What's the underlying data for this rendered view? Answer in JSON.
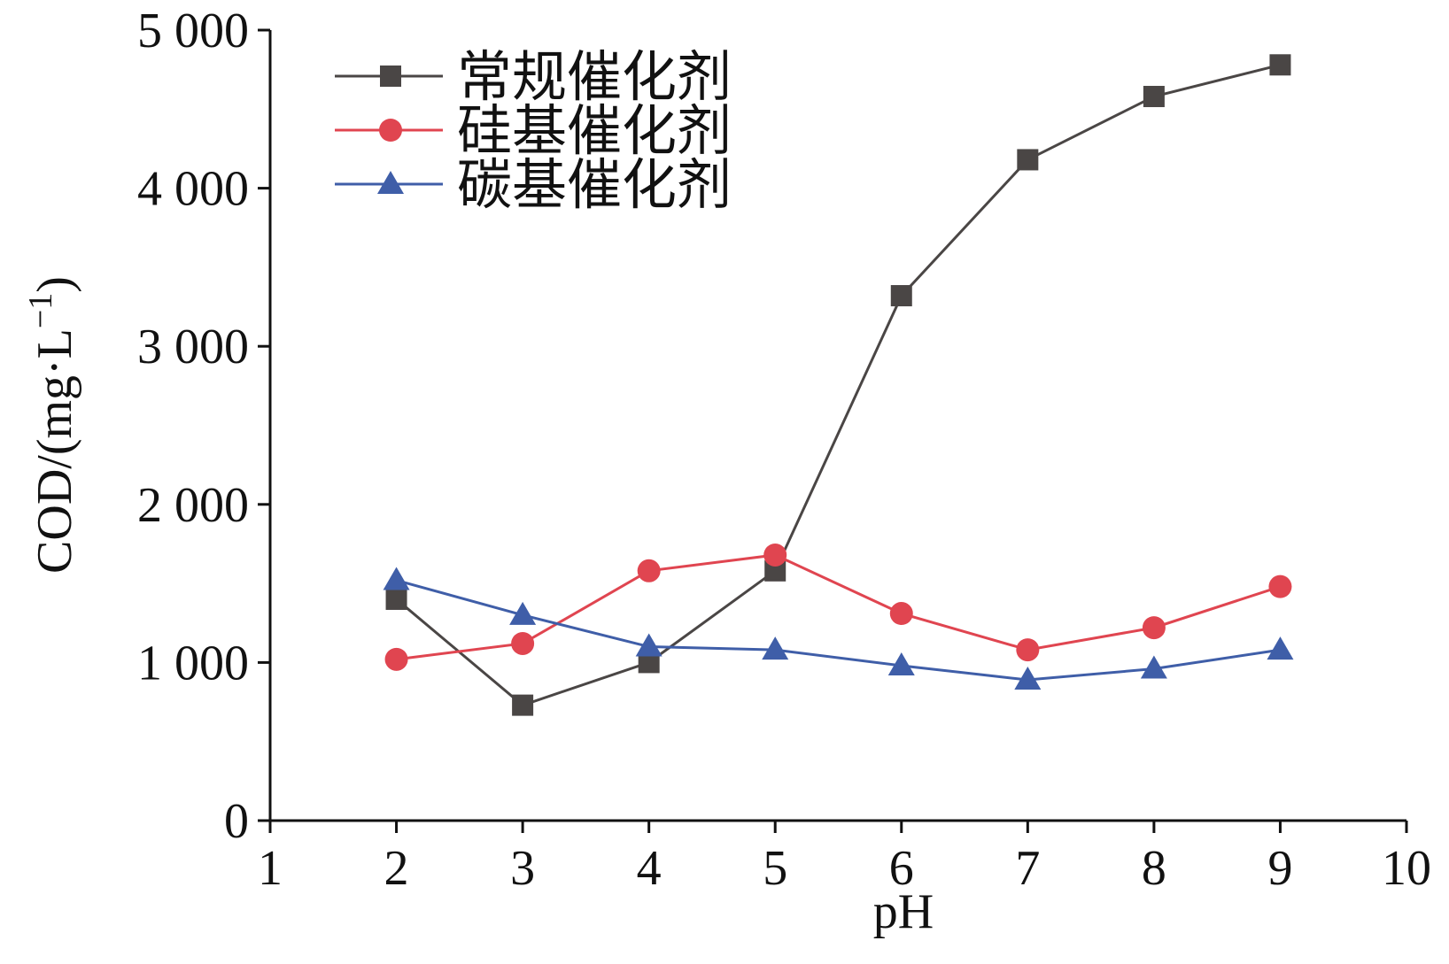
{
  "chart_data": {
    "type": "line",
    "xlabel": "pH",
    "ylabel": "COD/(mg·L",
    "ylabel_sup": "−1",
    "ylabel_close": ")",
    "xlim": [
      1,
      10
    ],
    "ylim": [
      0,
      5000
    ],
    "xticks": [
      1,
      2,
      3,
      4,
      5,
      6,
      7,
      8,
      9,
      10
    ],
    "xtick_labels": [
      "1",
      "2",
      "3",
      "4",
      "5",
      "6",
      "7",
      "8",
      "9",
      "10"
    ],
    "yticks": [
      0,
      1000,
      2000,
      3000,
      4000,
      5000
    ],
    "ytick_labels": [
      "0",
      "1 000",
      "2 000",
      "3 000",
      "4 000",
      "5 000"
    ],
    "grid": false,
    "legend_position": "top-left",
    "x": [
      2,
      3,
      4,
      5,
      6,
      7,
      8,
      9
    ],
    "series": [
      {
        "name": "常规催化剂",
        "color": "#4a4645",
        "marker": "square",
        "values": [
          1400,
          730,
          1000,
          1580,
          3320,
          4180,
          4580,
          4780
        ]
      },
      {
        "name": "硅基催化剂",
        "color": "#e04550",
        "marker": "circle",
        "values": [
          1020,
          1120,
          1580,
          1680,
          1310,
          1080,
          1220,
          1480
        ]
      },
      {
        "name": "碳基催化剂",
        "color": "#3f5ea8",
        "marker": "triangle",
        "values": [
          1520,
          1300,
          1100,
          1080,
          980,
          890,
          960,
          1080
        ]
      }
    ]
  }
}
